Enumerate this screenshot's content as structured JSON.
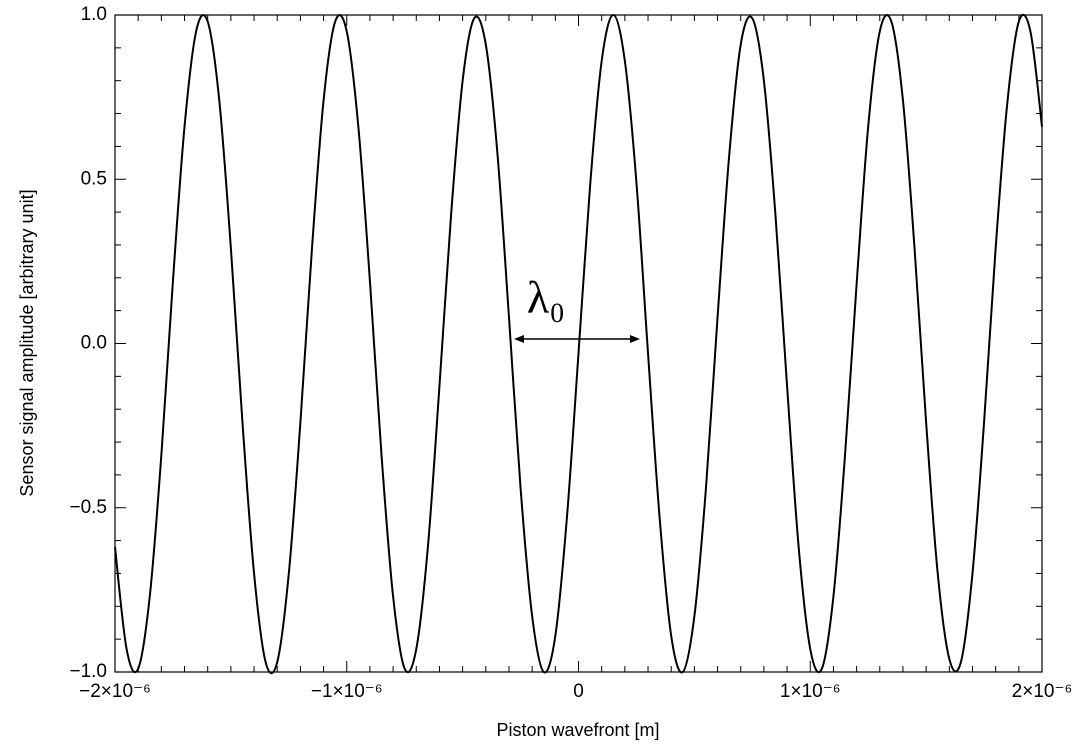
{
  "chart_data": {
    "type": "line",
    "xlabel": "Piston wavefront [m]",
    "ylabel": "Sensor signal amplitude [arbitrary unit]",
    "annotation": "λ₀",
    "color": "#000000",
    "xlim": [
      -2e-06,
      2e-06
    ],
    "ylim": [
      -1,
      1
    ],
    "xticks": [
      {
        "value": -2e-06,
        "label": "−2×10⁻⁶"
      },
      {
        "value": -1e-06,
        "label": "−1×10⁻⁶"
      },
      0,
      {
        "value": 1e-06,
        "label": "1×10⁻⁶"
      },
      {
        "value": 2e-06,
        "label": "2×10⁻⁶"
      }
    ],
    "yticks": [
      {
        "value": -1,
        "label": "−1.0"
      },
      {
        "value": -0.5,
        "label": "−0.5"
      },
      {
        "value": 0,
        "label": "0.0"
      },
      0.5,
      {
        "value": 1,
        "label": "1.0"
      }
    ],
    "x": [
      -2e-06,
      -1.95e-06,
      -1.9e-06,
      -1.85e-06,
      -1.8e-06,
      -1.75e-06,
      -1.7e-06,
      -1.65e-06,
      -1.6e-06,
      -1.55e-06,
      -1.5e-06,
      -1.45e-06,
      -1.4e-06,
      -1.35e-06,
      -1.3e-06,
      -1.25e-06,
      -1.2e-06,
      -1.15e-06,
      -1.1e-06,
      -1.05e-06,
      -1e-06,
      -9.5e-07,
      -9e-07,
      -8.5e-07,
      -8e-07,
      -7.5e-07,
      -7e-07,
      -6.5e-07,
      -6e-07,
      -5.5e-07,
      -5e-07,
      -4.5e-07,
      -4e-07,
      -3.5e-07,
      -3e-07,
      -2.5e-07,
      -2e-07,
      -1.5e-07,
      -1e-07,
      -5e-08,
      0,
      5e-08,
      1e-07,
      1.5e-07,
      2e-07,
      2.5e-07,
      3e-07,
      3.5e-07,
      4e-07,
      4.5e-07,
      5e-07,
      5.5e-07,
      6e-07,
      6.5e-07,
      7e-07,
      7.5e-07,
      8e-07,
      8.5e-07,
      9e-07,
      9.5e-07,
      1e-06,
      1.05e-06,
      1.1e-06,
      1.15e-06,
      1.2e-06,
      1.25e-06,
      1.3e-06,
      1.35e-06,
      1.4e-06,
      1.45e-06,
      1.5e-06,
      1.55e-06,
      1.6e-06,
      1.65e-06,
      1.7e-06,
      1.75e-06,
      1.8e-06,
      1.85e-06,
      1.9e-06,
      1.95e-06,
      2e-06
    ],
    "values": [
      -0.62,
      -0.93,
      -0.99,
      -0.77,
      -0.34,
      0.19,
      0.66,
      0.95,
      0.98,
      0.74,
      0.29,
      -0.24,
      -0.7,
      -0.97,
      -0.97,
      -0.7,
      -0.24,
      0.29,
      0.74,
      0.98,
      0.95,
      0.66,
      0.19,
      -0.34,
      -0.77,
      -0.99,
      -0.93,
      -0.62,
      -0.13,
      0.39,
      0.8,
      0.99,
      0.91,
      0.58,
      0.08,
      -0.44,
      -0.83,
      -1.0,
      -0.89,
      -0.53,
      -0.03,
      0.48,
      0.86,
      1.0,
      0.86,
      0.49,
      -0.03,
      -0.53,
      -0.89,
      -1.0,
      -0.83,
      -0.44,
      0.08,
      0.57,
      0.91,
      0.99,
      0.8,
      0.39,
      -0.13,
      -0.62,
      -0.93,
      -0.99,
      -0.77,
      -0.34,
      0.18,
      0.66,
      0.95,
      0.98,
      0.74,
      0.29,
      -0.24,
      -0.7,
      -0.96,
      -0.97,
      -0.7,
      -0.24,
      0.29,
      0.73,
      0.98,
      0.95,
      0.66
    ]
  }
}
